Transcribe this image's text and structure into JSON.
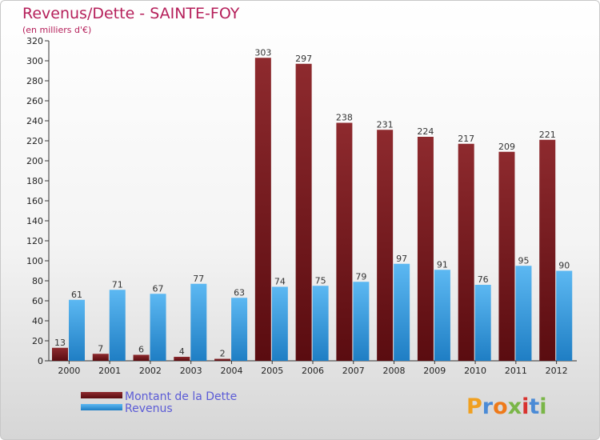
{
  "chart_data": {
    "type": "bar",
    "title": "Revenus/Dette - SAINTE-FOY",
    "subtitle": "(en milliers d'€)",
    "categories": [
      "2000",
      "2001",
      "2002",
      "2003",
      "2004",
      "2005",
      "2006",
      "2007",
      "2008",
      "2009",
      "2010",
      "2011",
      "2012"
    ],
    "series": [
      {
        "name": "Montant de la Dette",
        "color": "#7a1e22",
        "values": [
          13,
          7,
          6,
          4,
          2,
          303,
          297,
          238,
          231,
          224,
          217,
          209,
          221
        ]
      },
      {
        "name": "Revenus",
        "color": "#3a9ee4",
        "values": [
          61,
          71,
          67,
          77,
          63,
          74,
          75,
          79,
          97,
          91,
          76,
          95,
          90
        ]
      }
    ],
    "ylim": [
      0,
      320
    ],
    "yticks": [
      0,
      20,
      40,
      60,
      80,
      100,
      120,
      140,
      160,
      180,
      200,
      220,
      240,
      260,
      280,
      300,
      320
    ],
    "grid": false,
    "legend_position": "bottom-left"
  },
  "logo": {
    "letters": [
      "P",
      "r",
      "o",
      "x",
      "i",
      "t",
      "i"
    ],
    "colors": [
      "#f0a020",
      "#4b8bd6",
      "#ee7a1a",
      "#7ab648",
      "#d8322e",
      "#4b8bd6",
      "#7ab648"
    ]
  }
}
